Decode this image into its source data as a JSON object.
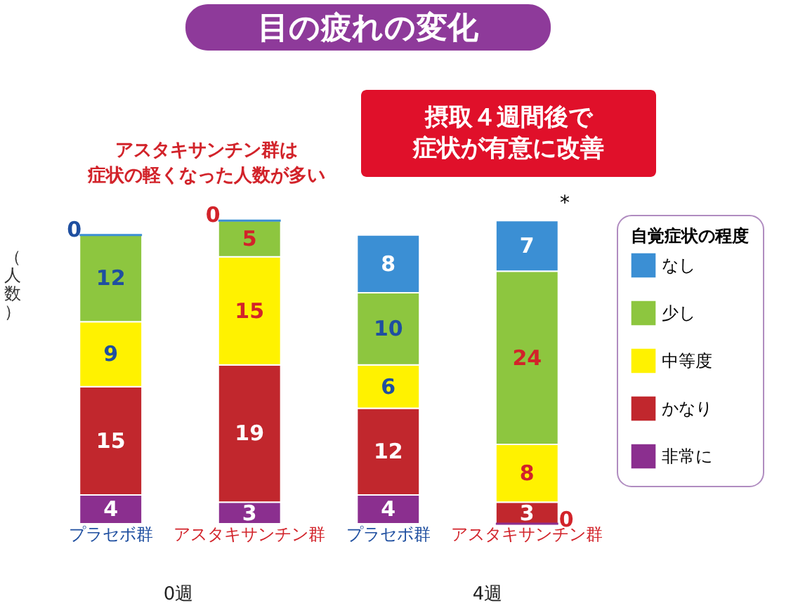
{
  "chart_data": {
    "type": "bar",
    "stacked": true,
    "title": "目の疲れの変化",
    "ylabel": "（人数）",
    "legend_title": "自覚症状の程度",
    "legend": "right",
    "data_labels": true,
    "tick_labels": "x",
    "categories": [
      "プラセボ群",
      "アスタキサンチン群",
      "プラセボ群",
      "アスタキサンチン群"
    ],
    "series": [
      {
        "name": "非常に",
        "color": "#8b2f8f",
        "values": [
          4,
          3,
          4,
          0
        ]
      },
      {
        "name": "かなり",
        "color": "#c1272d",
        "values": [
          15,
          19,
          12,
          3
        ]
      },
      {
        "name": "中等度",
        "color": "#fff200",
        "values": [
          9,
          15,
          6,
          8
        ]
      },
      {
        "name": "少し",
        "color": "#8dc63f",
        "values": [
          12,
          5,
          10,
          24
        ]
      },
      {
        "name": "なし",
        "color": "#3b8fd4",
        "values": [
          0,
          0,
          8,
          7
        ]
      }
    ],
    "annotations": [
      "アスタキサンチン群は症状の軽くなった人数が多い",
      "摂取４週間後で症状が有意に改善",
      "*",
      "0週",
      "4週"
    ]
  }
}
